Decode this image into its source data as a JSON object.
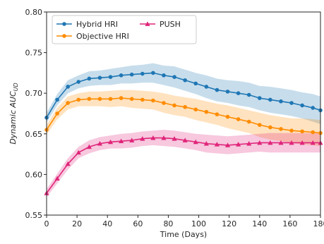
{
  "chart_data": {
    "type": "line",
    "title": "",
    "xlabel": "Time (Days)",
    "ylabel": "Dynamic AUC",
    "ylabel_subscript": "UD",
    "xlim": [
      0,
      180
    ],
    "ylim": [
      0.55,
      0.8
    ],
    "xticks": [
      0,
      20,
      40,
      60,
      80,
      100,
      120,
      140,
      160,
      180
    ],
    "xtick_labels": [
      "0",
      "20",
      "40",
      "60",
      "80",
      "100",
      "120",
      "140",
      "160",
      "180"
    ],
    "yticks": [
      0.55,
      0.6,
      0.65,
      0.7,
      0.75,
      0.8
    ],
    "ytick_labels": [
      "0.55",
      "0.60",
      "0.65",
      "0.70",
      "0.75",
      "0.80"
    ],
    "grid": false,
    "legend_position": "top-left",
    "x": [
      0,
      7,
      14,
      21,
      28,
      35,
      42,
      49,
      56,
      63,
      70,
      77,
      84,
      91,
      98,
      105,
      112,
      119,
      126,
      133,
      140,
      147,
      154,
      161,
      168,
      175,
      180
    ],
    "series": [
      {
        "name": "Hybrid HRI",
        "color": "#1f77b4",
        "marker": "circle",
        "values": [
          0.67,
          0.692,
          0.708,
          0.714,
          0.718,
          0.719,
          0.72,
          0.722,
          0.723,
          0.724,
          0.725,
          0.722,
          0.72,
          0.716,
          0.712,
          0.708,
          0.704,
          0.702,
          0.7,
          0.698,
          0.694,
          0.692,
          0.69,
          0.688,
          0.685,
          0.682,
          0.679
        ],
        "band_halfwidth": [
          0.006,
          0.007,
          0.008,
          0.008,
          0.009,
          0.009,
          0.01,
          0.01,
          0.011,
          0.011,
          0.012,
          0.012,
          0.013,
          0.013,
          0.013,
          0.014,
          0.014,
          0.014,
          0.015,
          0.015,
          0.015,
          0.016,
          0.016,
          0.016,
          0.016,
          0.017,
          0.017
        ]
      },
      {
        "name": "Objective HRI",
        "color": "#ff8c00",
        "marker": "circle",
        "values": [
          0.655,
          0.675,
          0.688,
          0.692,
          0.693,
          0.693,
          0.693,
          0.694,
          0.693,
          0.692,
          0.691,
          0.688,
          0.685,
          0.683,
          0.68,
          0.677,
          0.674,
          0.671,
          0.668,
          0.665,
          0.661,
          0.658,
          0.656,
          0.654,
          0.653,
          0.652,
          0.651
        ],
        "band_halfwidth": [
          0.006,
          0.007,
          0.008,
          0.008,
          0.009,
          0.009,
          0.01,
          0.01,
          0.011,
          0.011,
          0.011,
          0.012,
          0.012,
          0.012,
          0.013,
          0.013,
          0.013,
          0.014,
          0.014,
          0.014,
          0.015,
          0.015,
          0.015,
          0.015,
          0.016,
          0.016,
          0.016
        ]
      },
      {
        "name": "PUSH",
        "color": "#e0257a",
        "marker": "triangle",
        "values": [
          0.577,
          0.595,
          0.613,
          0.627,
          0.634,
          0.638,
          0.64,
          0.641,
          0.642,
          0.644,
          0.645,
          0.645,
          0.644,
          0.642,
          0.64,
          0.638,
          0.637,
          0.636,
          0.637,
          0.638,
          0.639,
          0.639,
          0.639,
          0.639,
          0.639,
          0.639,
          0.639
        ],
        "band_halfwidth": [
          0.005,
          0.006,
          0.007,
          0.007,
          0.008,
          0.008,
          0.008,
          0.009,
          0.009,
          0.009,
          0.009,
          0.01,
          0.01,
          0.01,
          0.01,
          0.011,
          0.011,
          0.011,
          0.011,
          0.011,
          0.011,
          0.012,
          0.012,
          0.012,
          0.012,
          0.012,
          0.012
        ]
      }
    ]
  }
}
